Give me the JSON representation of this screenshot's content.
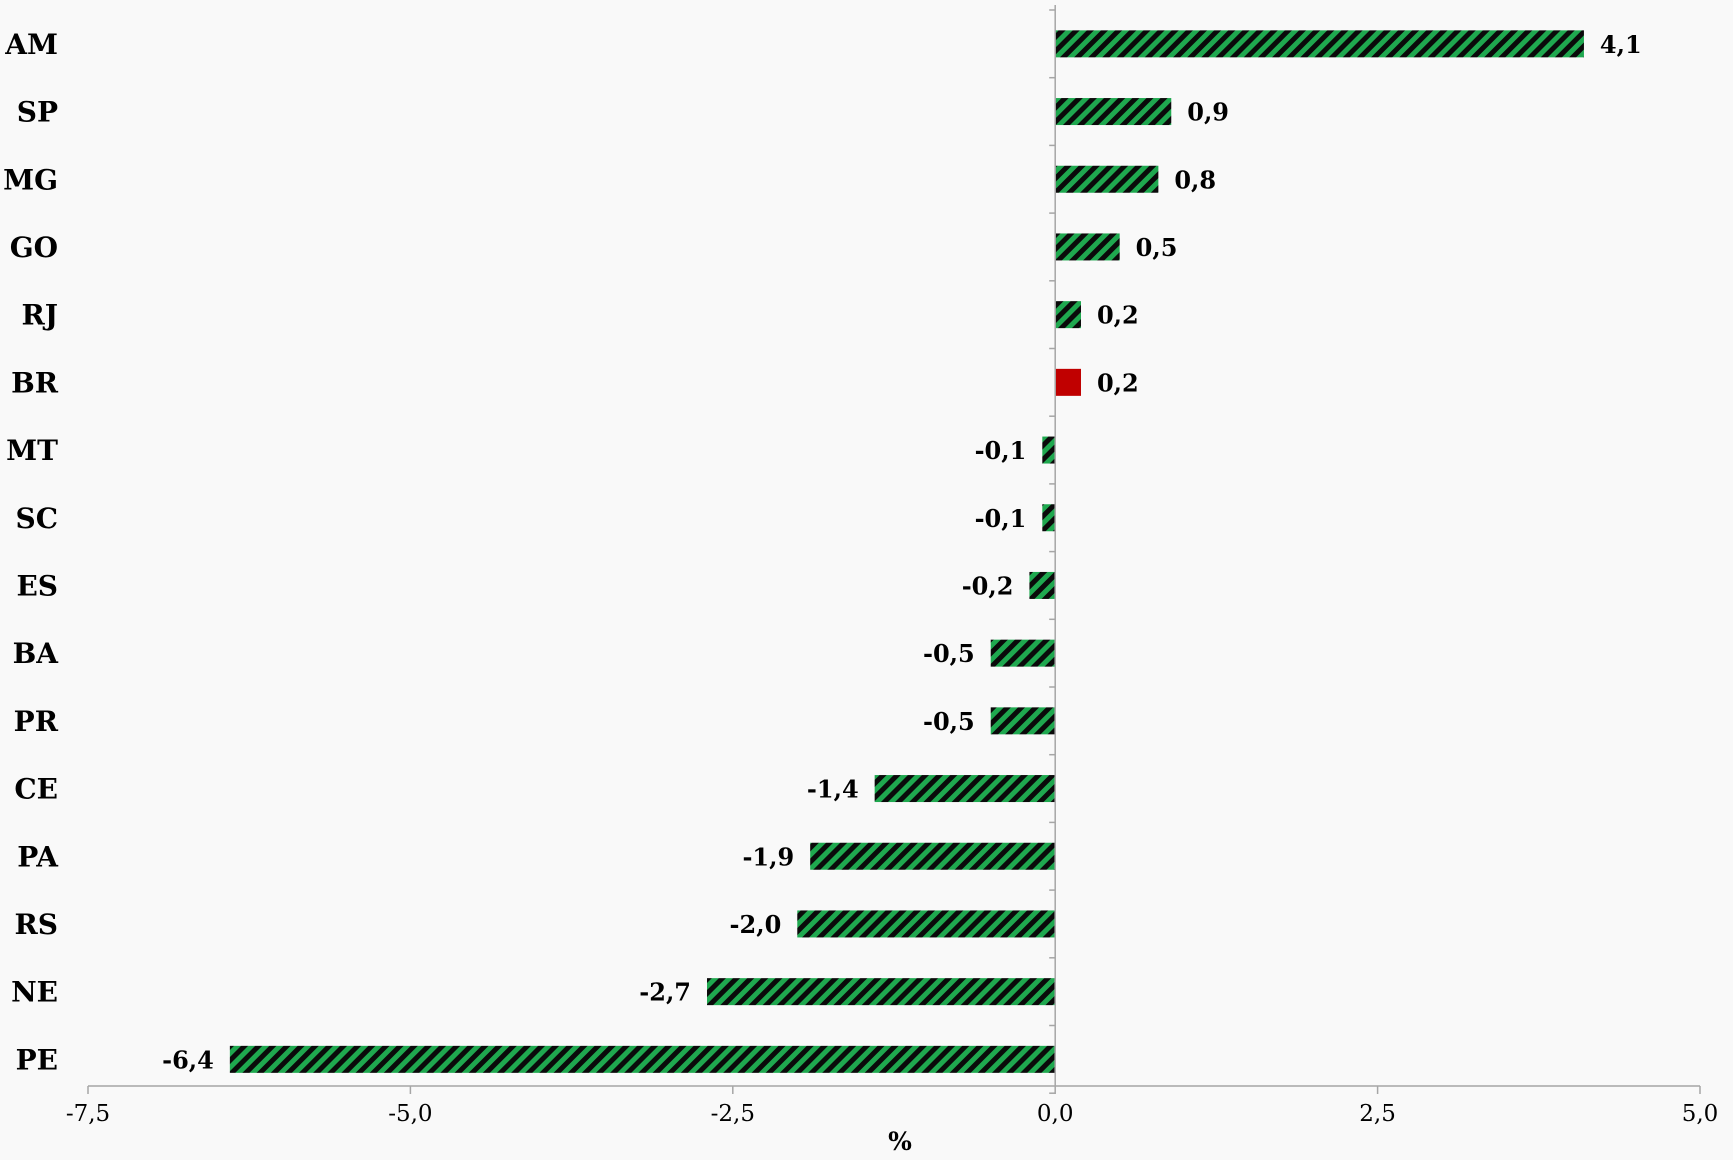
{
  "chart_data": {
    "type": "bar",
    "orientation": "horizontal",
    "title": "",
    "xlabel": "%",
    "ylabel": "",
    "categories": [
      "AM",
      "SP",
      "MG",
      "GO",
      "RJ",
      "BR",
      "MT",
      "SC",
      "ES",
      "BA",
      "PR",
      "CE",
      "PA",
      "RS",
      "NE",
      "PE"
    ],
    "values": [
      4.1,
      0.9,
      0.8,
      0.5,
      0.2,
      0.2,
      -0.1,
      -0.1,
      -0.2,
      -0.5,
      -0.5,
      -1.4,
      -1.9,
      -2.0,
      -2.7,
      -6.4
    ],
    "value_labels": [
      "4,1",
      "0,9",
      "0,8",
      "0,5",
      "0,2",
      "0,2",
      "-0,1",
      "-0,1",
      "-0,2",
      "-0,5",
      "-0,5",
      "-1,4",
      "-1,9",
      "-2,0",
      "-2,7",
      "-6,4"
    ],
    "highlight_category": "BR",
    "xlim": [
      -7.5,
      5.0
    ],
    "xticks": [
      -7.5,
      -5.0,
      -2.5,
      0.0,
      2.5,
      5.0
    ],
    "xtick_labels": [
      "-7,5",
      "-5,0",
      "-2,5",
      "0,0",
      "2,5",
      "5,0"
    ],
    "grid": false,
    "legend": "none",
    "colors": {
      "bar_fill": "#1fa84f",
      "bar_hatch": "#0a0a0a",
      "highlight": "#c00000",
      "axis": "#a6a6a6"
    }
  }
}
